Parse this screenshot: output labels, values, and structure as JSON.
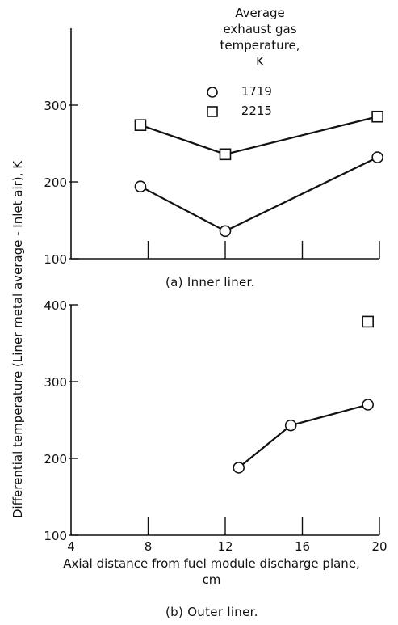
{
  "figure": {
    "ylabel": "Differential temperature (Liner metal average - Inlet air), K",
    "xlabel": "Axial distance from fuel module discharge plane,",
    "xunit": "cm"
  },
  "legend": {
    "title_lines": [
      "Average",
      "exhaust gas",
      "temperature,",
      "K"
    ],
    "entries": [
      {
        "marker": "circle",
        "label": "1719"
      },
      {
        "marker": "square",
        "label": "2215"
      }
    ]
  },
  "chart_data": [
    {
      "type": "line",
      "caption": "(a) Inner liner.",
      "xlim": [
        4,
        20
      ],
      "ylim": [
        100,
        400
      ],
      "yticks": [
        100,
        200,
        300
      ],
      "xticks": [
        8,
        12,
        16,
        20
      ],
      "xtick_labels_shown": false,
      "series": [
        {
          "name": "1719",
          "marker": "circle",
          "x": [
            7.6,
            12.0,
            19.9
          ],
          "y": [
            194,
            136,
            232
          ]
        },
        {
          "name": "2215",
          "marker": "square",
          "x": [
            7.6,
            12.0,
            19.9
          ],
          "y": [
            274,
            236,
            285
          ]
        }
      ]
    },
    {
      "type": "line",
      "caption": "(b) Outer liner.",
      "xlim": [
        4,
        20
      ],
      "ylim": [
        100,
        400
      ],
      "yticks": [
        100,
        200,
        300,
        400
      ],
      "xticks": [
        4,
        8,
        12,
        16,
        20
      ],
      "xtick_labels_shown": true,
      "series": [
        {
          "name": "1719",
          "marker": "circle",
          "x": [
            12.7,
            15.4,
            19.4
          ],
          "y": [
            188,
            243,
            270
          ]
        },
        {
          "name": "2215",
          "marker": "square",
          "x": [
            19.4
          ],
          "y": [
            378
          ]
        }
      ]
    }
  ]
}
